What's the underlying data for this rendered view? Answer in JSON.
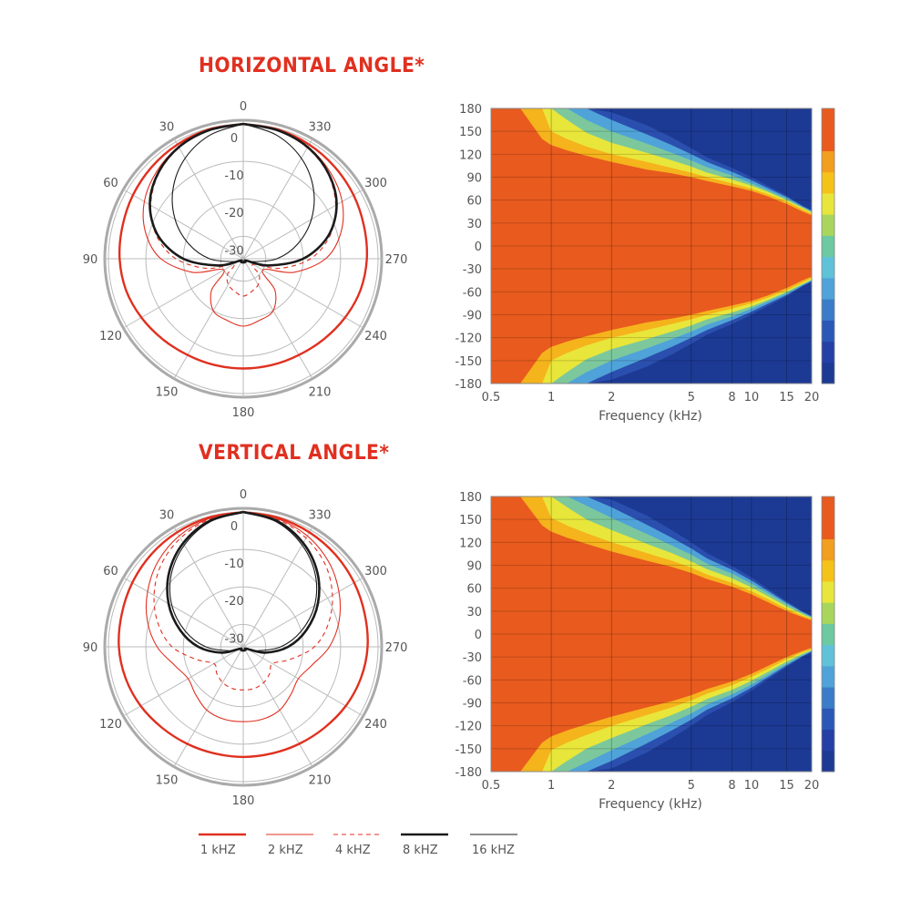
{
  "sections": {
    "horizontal_title": "HORIZONTAL ANGLE*",
    "vertical_title": "VERTICAL ANGLE*"
  },
  "colors": {
    "title": "#e03020",
    "grid": "#bbbbbb",
    "outer_ring": "#aaaaaa",
    "red": "#e03020",
    "black": "#1a1a1a",
    "colorbar": [
      "#1c3a94",
      "#243fa6",
      "#2b57b8",
      "#3a7cc8",
      "#4fa3d8",
      "#5fc2d8",
      "#6cc9a0",
      "#a8d65c",
      "#e8e63a",
      "#f5c219",
      "#f29e1e",
      "#ea5a1e",
      "#e85a1e"
    ]
  },
  "chart_data": [
    {
      "type": "polar",
      "id": "horizontal-polar",
      "angle_labels": [
        "0",
        "30",
        "60",
        "90",
        "120",
        "150",
        "180",
        "210",
        "240",
        "270",
        "300",
        "330"
      ],
      "radial_labels": [
        "0",
        "-10",
        "-20",
        "-30"
      ],
      "radial_range_db": [
        -36,
        0
      ],
      "series": [
        {
          "name": "1 kHZ",
          "style": "red-thick",
          "angles_deg": [
            0,
            15,
            30,
            45,
            60,
            75,
            90,
            105,
            120,
            135,
            150,
            165,
            180
          ],
          "db": [
            0,
            -0.3,
            -0.8,
            -1.4,
            -2.0,
            -2.6,
            -3.0,
            -3.6,
            -4.6,
            -5.6,
            -6.3,
            -6.6,
            -6.7
          ]
        },
        {
          "name": "2 kHZ",
          "style": "red-thin",
          "angles_deg": [
            0,
            15,
            30,
            45,
            60,
            75,
            90,
            105,
            120,
            135,
            150,
            165,
            180
          ],
          "db": [
            0,
            -0.5,
            -1.5,
            -3.2,
            -5.5,
            -9,
            -14,
            -22,
            -30,
            -24,
            -20,
            -19,
            -18
          ]
        },
        {
          "name": "4 kHZ",
          "style": "red-dashed",
          "angles_deg": [
            0,
            15,
            30,
            45,
            60,
            75,
            90,
            105,
            120,
            135,
            150,
            165,
            180
          ],
          "db": [
            0,
            -0.6,
            -1.8,
            -4.0,
            -7.5,
            -12,
            -18,
            -26,
            -33,
            -30,
            -28,
            -27,
            -26
          ]
        },
        {
          "name": "8 kHZ",
          "style": "black-thick",
          "angles_deg": [
            0,
            15,
            30,
            45,
            60,
            75,
            90,
            105,
            120,
            135,
            150,
            165,
            180
          ],
          "db": [
            0,
            -0.5,
            -1.6,
            -3.8,
            -7.2,
            -12.5,
            -20,
            -29,
            -35,
            -35,
            -35,
            -35,
            -35
          ]
        },
        {
          "name": "16 kHZ",
          "style": "black-thin",
          "angles_deg": [
            0,
            15,
            30,
            45,
            60,
            75,
            90,
            105,
            120,
            135,
            150,
            165,
            180
          ],
          "db": [
            0,
            -1.8,
            -5.0,
            -9.5,
            -15,
            -21,
            -27,
            -33,
            -35,
            -35,
            -35,
            -35,
            -35
          ]
        }
      ]
    },
    {
      "type": "heatmap",
      "id": "horizontal-heatmap",
      "xlabel": "Frequency (kHz)",
      "x_ticks": [
        "0.5",
        "1",
        "2",
        "5",
        "8",
        "10",
        "15",
        "20"
      ],
      "x_tick_values": [
        0.5,
        1,
        2,
        5,
        8,
        10,
        15,
        20
      ],
      "xlim": [
        0.5,
        20
      ],
      "y_ticks": [
        "180",
        "150",
        "120",
        "90",
        "60",
        "30",
        "0",
        "-30",
        "-60",
        "-90",
        "-120",
        "-150",
        "-180"
      ],
      "ylim": [
        -180,
        180
      ],
      "contours_abs_angle": {
        "freqs_khz": [
          0.5,
          0.7,
          0.9,
          1.0,
          1.2,
          1.5,
          2,
          3,
          4,
          5,
          6,
          8,
          10,
          12,
          15,
          18,
          20
        ],
        "levels": [
          [
            180,
            180,
            140,
            132,
            125,
            118,
            110,
            100,
            95,
            90,
            85,
            78,
            72,
            65,
            55,
            45,
            40
          ],
          [
            180,
            180,
            180,
            150,
            140,
            130,
            120,
            110,
            102,
            96,
            90,
            82,
            75,
            68,
            58,
            48,
            42
          ],
          [
            180,
            180,
            180,
            180,
            165,
            148,
            135,
            122,
            112,
            104,
            96,
            87,
            79,
            71,
            60,
            50,
            44
          ],
          [
            180,
            180,
            180,
            180,
            180,
            165,
            150,
            134,
            122,
            112,
            103,
            92,
            82,
            73,
            62,
            51,
            45
          ],
          [
            180,
            180,
            180,
            180,
            180,
            180,
            165,
            146,
            132,
            120,
            110,
            97,
            86,
            76,
            64,
            52,
            46
          ],
          [
            180,
            180,
            180,
            180,
            180,
            180,
            175,
            158,
            142,
            128,
            116,
            102,
            90,
            79,
            66,
            53,
            47
          ]
        ]
      }
    },
    {
      "type": "polar",
      "id": "vertical-polar",
      "angle_labels": [
        "0",
        "30",
        "60",
        "90",
        "120",
        "150",
        "180",
        "210",
        "240",
        "270",
        "300",
        "330"
      ],
      "radial_labels": [
        "0",
        "-10",
        "-20",
        "-30"
      ],
      "radial_range_db": [
        -36,
        0
      ],
      "series": [
        {
          "name": "1 kHZ",
          "style": "red-thick",
          "angles_deg": [
            0,
            15,
            30,
            45,
            60,
            75,
            90,
            105,
            120,
            135,
            150,
            165,
            180
          ],
          "db": [
            0,
            -0.3,
            -0.7,
            -1.2,
            -1.8,
            -2.4,
            -2.8,
            -3.5,
            -4.4,
            -5.4,
            -6.1,
            -6.5,
            -6.6
          ]
        },
        {
          "name": "2 kHZ",
          "style": "red-thin",
          "angles_deg": [
            0,
            15,
            30,
            45,
            60,
            75,
            90,
            105,
            120,
            135,
            150,
            165,
            180
          ],
          "db": [
            0,
            -0.6,
            -1.8,
            -3.8,
            -6.5,
            -9.5,
            -13,
            -17,
            -19,
            -18,
            -16.5,
            -16,
            -16
          ]
        },
        {
          "name": "4 kHZ",
          "style": "red-dashed",
          "angles_deg": [
            0,
            15,
            30,
            45,
            60,
            75,
            90,
            105,
            120,
            135,
            150,
            165,
            180
          ],
          "db": [
            0,
            -0.8,
            -2.5,
            -5.0,
            -8.5,
            -12.5,
            -17,
            -23,
            -27,
            -26,
            -25,
            -24.5,
            -24.5
          ]
        },
        {
          "name": "8 kHZ",
          "style": "black-thick",
          "angles_deg": [
            0,
            15,
            30,
            45,
            60,
            75,
            90,
            105,
            120,
            135,
            150,
            165,
            180
          ],
          "db": [
            0,
            -1.2,
            -4.0,
            -8.0,
            -13,
            -18.5,
            -24,
            -30,
            -35,
            -35,
            -35,
            -35,
            -35
          ]
        },
        {
          "name": "16 kHZ",
          "style": "black-thin",
          "angles_deg": [
            0,
            15,
            30,
            45,
            60,
            75,
            90,
            105,
            120,
            135,
            150,
            165,
            180
          ],
          "db": [
            0,
            -1.5,
            -4.6,
            -8.8,
            -14,
            -20,
            -26,
            -32,
            -35,
            -35,
            -35,
            -35,
            -35
          ]
        }
      ]
    },
    {
      "type": "heatmap",
      "id": "vertical-heatmap",
      "xlabel": "Frequency (kHz)",
      "x_ticks": [
        "0.5",
        "1",
        "2",
        "5",
        "8",
        "10",
        "15",
        "20"
      ],
      "x_tick_values": [
        0.5,
        1,
        2,
        5,
        8,
        10,
        15,
        20
      ],
      "xlim": [
        0.5,
        20
      ],
      "y_ticks": [
        "180",
        "150",
        "120",
        "90",
        "60",
        "30",
        "0",
        "-30",
        "-60",
        "-90",
        "-120",
        "-150",
        "-180"
      ],
      "ylim": [
        -180,
        180
      ],
      "contours_abs_angle": {
        "freqs_khz": [
          0.5,
          0.7,
          0.9,
          1.0,
          1.2,
          1.5,
          2,
          3,
          4,
          5,
          6,
          8,
          10,
          12,
          15,
          18,
          20
        ],
        "levels": [
          [
            180,
            180,
            142,
            134,
            126,
            118,
            108,
            96,
            88,
            80,
            72,
            62,
            52,
            42,
            30,
            22,
            18
          ],
          [
            180,
            180,
            180,
            152,
            142,
            132,
            120,
            106,
            96,
            87,
            78,
            67,
            56,
            46,
            33,
            24,
            20
          ],
          [
            180,
            180,
            180,
            180,
            166,
            150,
            136,
            118,
            106,
            95,
            85,
            73,
            61,
            50,
            36,
            26,
            21
          ],
          [
            180,
            180,
            180,
            180,
            180,
            168,
            152,
            131,
            116,
            104,
            92,
            79,
            66,
            54,
            39,
            28,
            22
          ],
          [
            180,
            180,
            180,
            180,
            180,
            180,
            166,
            143,
            126,
            112,
            99,
            84,
            70,
            57,
            41,
            29,
            23
          ],
          [
            180,
            180,
            180,
            180,
            180,
            180,
            176,
            155,
            136,
            120,
            106,
            89,
            74,
            60,
            43,
            30,
            24
          ]
        ]
      }
    }
  ],
  "legend": [
    {
      "label": "1 kHZ",
      "style": "red-thick"
    },
    {
      "label": "2 kHZ",
      "style": "red-thin"
    },
    {
      "label": "4 kHZ",
      "style": "red-dashed"
    },
    {
      "label": "8 kHZ",
      "style": "black-thick"
    },
    {
      "label": "16 kHZ",
      "style": "black-thin"
    }
  ]
}
